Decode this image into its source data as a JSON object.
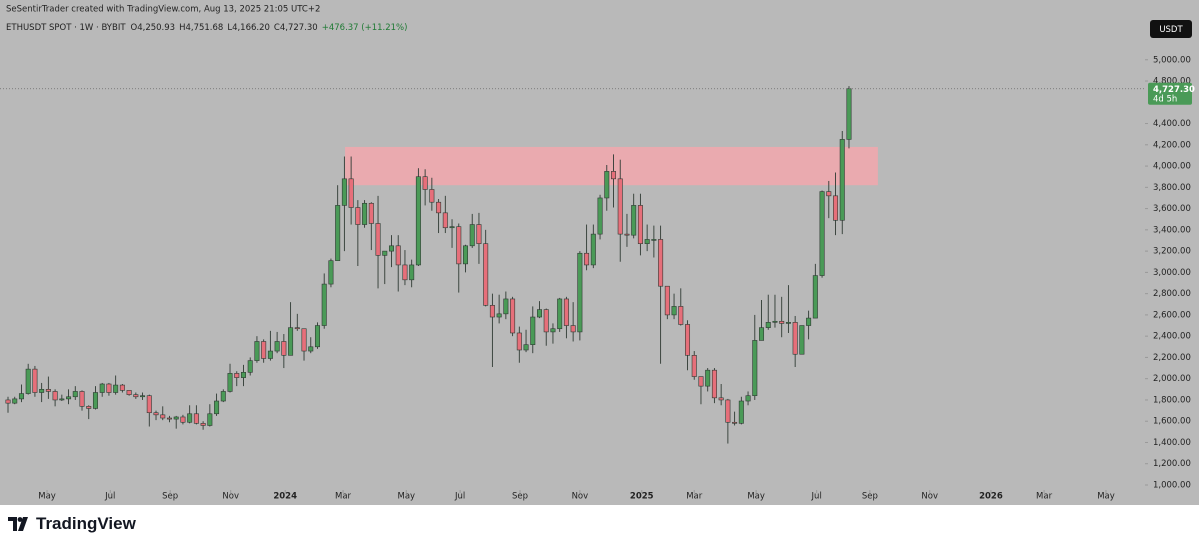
{
  "chart_data": {
    "type": "candlestick",
    "attribution": "SeSentirTrader created with TradingView.com, Aug 13, 2025 21:05 UTC+2",
    "legend": {
      "symbol": "ETHUSDT SPOT · 1W · BYBIT",
      "open": "O4,250.93",
      "high": "H4,751.68",
      "low": "L4,166.20",
      "close": "C4,727.30",
      "change": "+476.37 (+11.21%)"
    },
    "currency": "USDT",
    "last_price_label": "4,727.30",
    "countdown": "4d 5h",
    "brand": "TradingView",
    "up_color": "#4a9a57",
    "down_color": "#e66f7a",
    "zone_color": "#f2a7ad",
    "zone": {
      "xlim": [
        50.1,
        129.3
      ],
      "ylim": [
        3820,
        4180
      ]
    },
    "open": [
      1800,
      1770,
      1810,
      1860,
      2090,
      1870,
      1900,
      1880,
      1800,
      1810,
      1830,
      1880,
      1740,
      1720,
      1870,
      1950,
      1870,
      1940,
      1890,
      1850,
      1830,
      1840,
      1680,
      1660,
      1630,
      1620,
      1640,
      1590,
      1670,
      1580,
      1560,
      1670,
      1790,
      1880,
      2050,
      2010,
      2060,
      2170,
      2350,
      2190,
      2260,
      2350,
      2220,
      2480,
      2470,
      2260,
      2300,
      2500,
      2890,
      3110,
      3630,
      3880,
      3610,
      3450,
      3650,
      3460,
      3160,
      3200,
      3250,
      3070,
      2930,
      3070,
      3900,
      3780,
      3660,
      3560,
      3420,
      3430,
      3080,
      3250,
      3450,
      3270,
      2690,
      2580,
      2610,
      2750,
      2430,
      2270,
      2320,
      2580,
      2650,
      2440,
      2470,
      2750,
      2500,
      2440,
      3180,
      3070,
      3360,
      3700,
      3950,
      3880,
      3360,
      3350,
      3630,
      3270,
      3310,
      3310,
      2870,
      2600,
      2680,
      2510,
      2220,
      2020,
      1930,
      2080,
      1820,
      1800,
      1590,
      1580,
      1790,
      1840,
      2360,
      2480,
      2530,
      2540,
      2520,
      2530,
      2230,
      2500,
      2570,
      2970,
      3760,
      3720,
      3490,
      4250.93
    ],
    "high": [
      1830,
      1830,
      1945,
      2140,
      2120,
      1960,
      2020,
      1900,
      1850,
      1900,
      1930,
      1890,
      1750,
      1930,
      1960,
      1960,
      2030,
      1950,
      1890,
      1870,
      1870,
      1850,
      1700,
      1740,
      1650,
      1650,
      1660,
      1750,
      1750,
      1600,
      1760,
      1860,
      1900,
      2140,
      2070,
      2130,
      2200,
      2400,
      2370,
      2450,
      2440,
      2420,
      2720,
      2610,
      2470,
      2390,
      2530,
      2990,
      3130,
      3820,
      4090,
      4090,
      3680,
      3680,
      3660,
      3720,
      3200,
      3350,
      3350,
      3210,
      3120,
      3980,
      3970,
      3890,
      3690,
      3720,
      3500,
      3460,
      3260,
      3550,
      3560,
      3400,
      2800,
      2790,
      2820,
      2770,
      2490,
      2460,
      2680,
      2730,
      2660,
      2520,
      2760,
      2770,
      2720,
      3200,
      3450,
      3450,
      3730,
      4010,
      4110,
      4060,
      3550,
      3740,
      3740,
      3450,
      3440,
      3440,
      2870,
      2800,
      2850,
      2550,
      2260,
      2020,
      2100,
      2100,
      1950,
      1810,
      1690,
      1830,
      1880,
      2600,
      2740,
      2790,
      2790,
      2770,
      2880,
      2590,
      2500,
      2640,
      3080,
      3770,
      3860,
      3940,
      4330,
      4751.68
    ],
    "low": [
      1680,
      1760,
      1780,
      1850,
      1830,
      1780,
      1810,
      1740,
      1790,
      1760,
      1800,
      1700,
      1620,
      1710,
      1830,
      1840,
      1850,
      1870,
      1840,
      1810,
      1800,
      1550,
      1610,
      1610,
      1590,
      1530,
      1570,
      1580,
      1570,
      1520,
      1550,
      1650,
      1780,
      1870,
      1930,
      1930,
      2030,
      2150,
      2150,
      2170,
      2240,
      2100,
      2220,
      2450,
      2170,
      2240,
      2280,
      2470,
      2860,
      3110,
      3200,
      3450,
      3060,
      3420,
      3210,
      2850,
      2890,
      3050,
      2820,
      2880,
      2860,
      3060,
      3630,
      3580,
      3370,
      3370,
      3230,
      2810,
      3000,
      3230,
      3080,
      2680,
      2110,
      2520,
      2560,
      2400,
      2150,
      2250,
      2240,
      2570,
      2310,
      2330,
      2440,
      2380,
      2350,
      2360,
      3020,
      3040,
      3310,
      3580,
      3610,
      3100,
      3240,
      3320,
      3160,
      3200,
      3140,
      2140,
      2560,
      2560,
      2500,
      2080,
      1990,
      1760,
      1880,
      1770,
      1750,
      1390,
      1560,
      1570,
      1750,
      1800,
      2360,
      2460,
      2480,
      2390,
      2430,
      2110,
      2230,
      2370,
      2570,
      2950,
      3510,
      3350,
      3360,
      4166.2
    ],
    "close": [
      1770,
      1810,
      1860,
      2090,
      1870,
      1900,
      1880,
      1800,
      1810,
      1830,
      1880,
      1740,
      1720,
      1870,
      1950,
      1870,
      1940,
      1890,
      1850,
      1830,
      1840,
      1680,
      1660,
      1630,
      1620,
      1640,
      1590,
      1670,
      1580,
      1560,
      1670,
      1790,
      1880,
      2050,
      2010,
      2060,
      2170,
      2350,
      2190,
      2260,
      2350,
      2220,
      2480,
      2470,
      2260,
      2300,
      2500,
      2890,
      3110,
      3630,
      3880,
      3610,
      3450,
      3650,
      3460,
      3160,
      3200,
      3250,
      3070,
      2930,
      3070,
      3900,
      3780,
      3660,
      3560,
      3420,
      3430,
      3080,
      3250,
      3450,
      3270,
      2690,
      2580,
      2610,
      2750,
      2430,
      2270,
      2320,
      2580,
      2650,
      2440,
      2470,
      2750,
      2500,
      2440,
      3180,
      3070,
      3360,
      3700,
      3950,
      3880,
      3360,
      3350,
      3630,
      3270,
      3310,
      3310,
      2870,
      2600,
      2680,
      2510,
      2220,
      2020,
      1930,
      2080,
      1820,
      1800,
      1590,
      1580,
      1790,
      1840,
      2360,
      2480,
      2530,
      2540,
      2520,
      2530,
      2230,
      2500,
      2570,
      2970,
      3760,
      3720,
      3490,
      4250.93,
      4727.3
    ],
    "xlim": [
      -1.19,
      169.0
    ],
    "xticks": [
      {
        "value": 5.8,
        "label": "May"
      },
      {
        "value": 15.2,
        "label": "Jul"
      },
      {
        "value": 24.1,
        "label": "Sep"
      },
      {
        "value": 33.1,
        "label": "Nov"
      },
      {
        "value": 41.2,
        "label": "2024"
      },
      {
        "value": 49.8,
        "label": "Mar"
      },
      {
        "value": 59.2,
        "label": "May"
      },
      {
        "value": 67.2,
        "label": "Jul"
      },
      {
        "value": 76.1,
        "label": "Sep"
      },
      {
        "value": 85.0,
        "label": "Nov"
      },
      {
        "value": 94.2,
        "label": "2025"
      },
      {
        "value": 102.0,
        "label": "Mar"
      },
      {
        "value": 111.2,
        "label": "May"
      },
      {
        "value": 120.2,
        "label": "Jul"
      },
      {
        "value": 128.1,
        "label": "Sep"
      },
      {
        "value": 137.0,
        "label": "Nov"
      },
      {
        "value": 146.1,
        "label": "2026"
      },
      {
        "value": 154.0,
        "label": "Mar"
      },
      {
        "value": 163.2,
        "label": "May"
      }
    ],
    "ylim": [
      953,
      5374
    ],
    "yticks": [
      {
        "value": 1000,
        "label": "1,000.00"
      },
      {
        "value": 1200,
        "label": "1,200.00"
      },
      {
        "value": 1400,
        "label": "1,400.00"
      },
      {
        "value": 1600,
        "label": "1,600.00"
      },
      {
        "value": 1800,
        "label": "1,800.00"
      },
      {
        "value": 2000,
        "label": "2,000.00"
      },
      {
        "value": 2200,
        "label": "2,200.00"
      },
      {
        "value": 2400,
        "label": "2,400.00"
      },
      {
        "value": 2600,
        "label": "2,600.00"
      },
      {
        "value": 2800,
        "label": "2,800.00"
      },
      {
        "value": 3000,
        "label": "3,000.00"
      },
      {
        "value": 3200,
        "label": "3,200.00"
      },
      {
        "value": 3400,
        "label": "3,400.00"
      },
      {
        "value": 3600,
        "label": "3,600.00"
      },
      {
        "value": 3800,
        "label": "3,800.00"
      },
      {
        "value": 4000,
        "label": "4,000.00"
      },
      {
        "value": 4200,
        "label": "4,200.00"
      },
      {
        "value": 4400,
        "label": "4,400.00"
      },
      {
        "value": 4800,
        "label": "4,800.00"
      },
      {
        "value": 5000,
        "label": "5,000.00"
      }
    ]
  }
}
